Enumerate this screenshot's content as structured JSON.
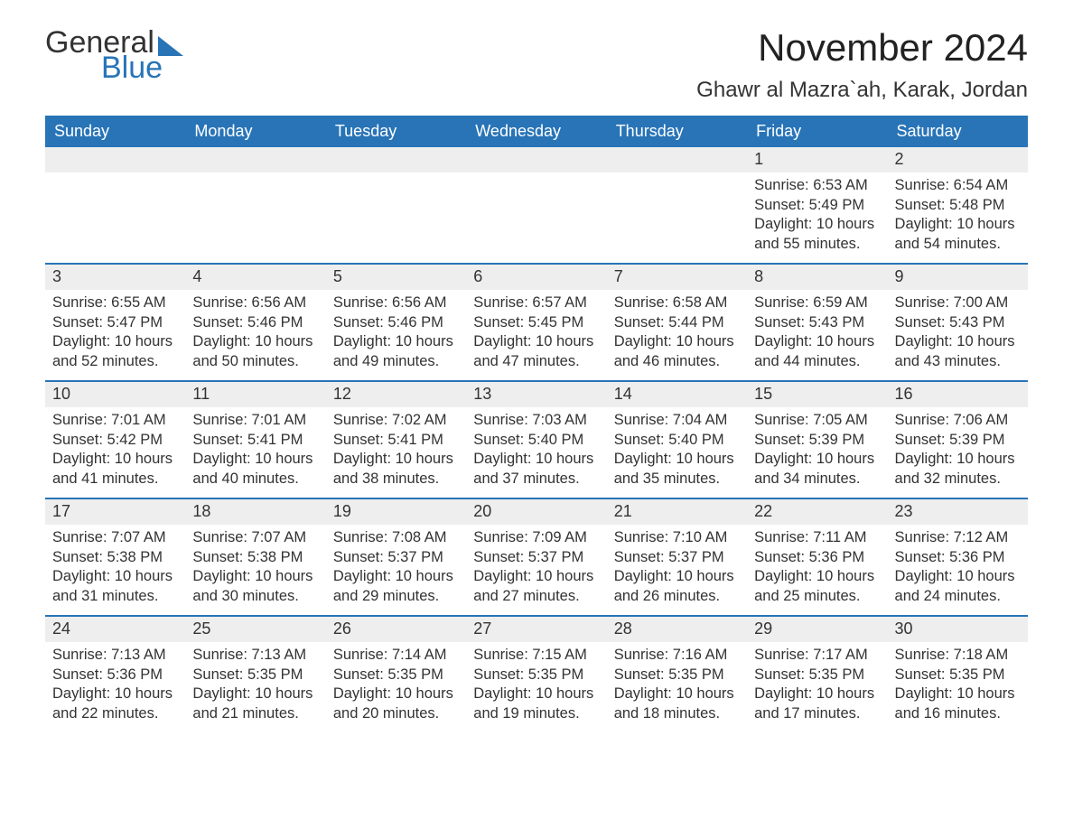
{
  "brand": {
    "word1": "General",
    "word2": "Blue"
  },
  "title": "November 2024",
  "location": "Ghawr al Mazra`ah, Karak, Jordan",
  "colors": {
    "accent": "#2874b7",
    "header_text": "#ffffff",
    "daynum_bg": "#eeeeee",
    "text": "#333333",
    "page_bg": "#ffffff"
  },
  "day_headers": [
    "Sunday",
    "Monday",
    "Tuesday",
    "Wednesday",
    "Thursday",
    "Friday",
    "Saturday"
  ],
  "weeks": [
    [
      {
        "empty": true
      },
      {
        "empty": true
      },
      {
        "empty": true
      },
      {
        "empty": true
      },
      {
        "empty": true
      },
      {
        "day": "1",
        "sunrise": "Sunrise: 6:53 AM",
        "sunset": "Sunset: 5:49 PM",
        "daylight1": "Daylight: 10 hours",
        "daylight2": "and 55 minutes."
      },
      {
        "day": "2",
        "sunrise": "Sunrise: 6:54 AM",
        "sunset": "Sunset: 5:48 PM",
        "daylight1": "Daylight: 10 hours",
        "daylight2": "and 54 minutes."
      }
    ],
    [
      {
        "day": "3",
        "sunrise": "Sunrise: 6:55 AM",
        "sunset": "Sunset: 5:47 PM",
        "daylight1": "Daylight: 10 hours",
        "daylight2": "and 52 minutes."
      },
      {
        "day": "4",
        "sunrise": "Sunrise: 6:56 AM",
        "sunset": "Sunset: 5:46 PM",
        "daylight1": "Daylight: 10 hours",
        "daylight2": "and 50 minutes."
      },
      {
        "day": "5",
        "sunrise": "Sunrise: 6:56 AM",
        "sunset": "Sunset: 5:46 PM",
        "daylight1": "Daylight: 10 hours",
        "daylight2": "and 49 minutes."
      },
      {
        "day": "6",
        "sunrise": "Sunrise: 6:57 AM",
        "sunset": "Sunset: 5:45 PM",
        "daylight1": "Daylight: 10 hours",
        "daylight2": "and 47 minutes."
      },
      {
        "day": "7",
        "sunrise": "Sunrise: 6:58 AM",
        "sunset": "Sunset: 5:44 PM",
        "daylight1": "Daylight: 10 hours",
        "daylight2": "and 46 minutes."
      },
      {
        "day": "8",
        "sunrise": "Sunrise: 6:59 AM",
        "sunset": "Sunset: 5:43 PM",
        "daylight1": "Daylight: 10 hours",
        "daylight2": "and 44 minutes."
      },
      {
        "day": "9",
        "sunrise": "Sunrise: 7:00 AM",
        "sunset": "Sunset: 5:43 PM",
        "daylight1": "Daylight: 10 hours",
        "daylight2": "and 43 minutes."
      }
    ],
    [
      {
        "day": "10",
        "sunrise": "Sunrise: 7:01 AM",
        "sunset": "Sunset: 5:42 PM",
        "daylight1": "Daylight: 10 hours",
        "daylight2": "and 41 minutes."
      },
      {
        "day": "11",
        "sunrise": "Sunrise: 7:01 AM",
        "sunset": "Sunset: 5:41 PM",
        "daylight1": "Daylight: 10 hours",
        "daylight2": "and 40 minutes."
      },
      {
        "day": "12",
        "sunrise": "Sunrise: 7:02 AM",
        "sunset": "Sunset: 5:41 PM",
        "daylight1": "Daylight: 10 hours",
        "daylight2": "and 38 minutes."
      },
      {
        "day": "13",
        "sunrise": "Sunrise: 7:03 AM",
        "sunset": "Sunset: 5:40 PM",
        "daylight1": "Daylight: 10 hours",
        "daylight2": "and 37 minutes."
      },
      {
        "day": "14",
        "sunrise": "Sunrise: 7:04 AM",
        "sunset": "Sunset: 5:40 PM",
        "daylight1": "Daylight: 10 hours",
        "daylight2": "and 35 minutes."
      },
      {
        "day": "15",
        "sunrise": "Sunrise: 7:05 AM",
        "sunset": "Sunset: 5:39 PM",
        "daylight1": "Daylight: 10 hours",
        "daylight2": "and 34 minutes."
      },
      {
        "day": "16",
        "sunrise": "Sunrise: 7:06 AM",
        "sunset": "Sunset: 5:39 PM",
        "daylight1": "Daylight: 10 hours",
        "daylight2": "and 32 minutes."
      }
    ],
    [
      {
        "day": "17",
        "sunrise": "Sunrise: 7:07 AM",
        "sunset": "Sunset: 5:38 PM",
        "daylight1": "Daylight: 10 hours",
        "daylight2": "and 31 minutes."
      },
      {
        "day": "18",
        "sunrise": "Sunrise: 7:07 AM",
        "sunset": "Sunset: 5:38 PM",
        "daylight1": "Daylight: 10 hours",
        "daylight2": "and 30 minutes."
      },
      {
        "day": "19",
        "sunrise": "Sunrise: 7:08 AM",
        "sunset": "Sunset: 5:37 PM",
        "daylight1": "Daylight: 10 hours",
        "daylight2": "and 29 minutes."
      },
      {
        "day": "20",
        "sunrise": "Sunrise: 7:09 AM",
        "sunset": "Sunset: 5:37 PM",
        "daylight1": "Daylight: 10 hours",
        "daylight2": "and 27 minutes."
      },
      {
        "day": "21",
        "sunrise": "Sunrise: 7:10 AM",
        "sunset": "Sunset: 5:37 PM",
        "daylight1": "Daylight: 10 hours",
        "daylight2": "and 26 minutes."
      },
      {
        "day": "22",
        "sunrise": "Sunrise: 7:11 AM",
        "sunset": "Sunset: 5:36 PM",
        "daylight1": "Daylight: 10 hours",
        "daylight2": "and 25 minutes."
      },
      {
        "day": "23",
        "sunrise": "Sunrise: 7:12 AM",
        "sunset": "Sunset: 5:36 PM",
        "daylight1": "Daylight: 10 hours",
        "daylight2": "and 24 minutes."
      }
    ],
    [
      {
        "day": "24",
        "sunrise": "Sunrise: 7:13 AM",
        "sunset": "Sunset: 5:36 PM",
        "daylight1": "Daylight: 10 hours",
        "daylight2": "and 22 minutes."
      },
      {
        "day": "25",
        "sunrise": "Sunrise: 7:13 AM",
        "sunset": "Sunset: 5:35 PM",
        "daylight1": "Daylight: 10 hours",
        "daylight2": "and 21 minutes."
      },
      {
        "day": "26",
        "sunrise": "Sunrise: 7:14 AM",
        "sunset": "Sunset: 5:35 PM",
        "daylight1": "Daylight: 10 hours",
        "daylight2": "and 20 minutes."
      },
      {
        "day": "27",
        "sunrise": "Sunrise: 7:15 AM",
        "sunset": "Sunset: 5:35 PM",
        "daylight1": "Daylight: 10 hours",
        "daylight2": "and 19 minutes."
      },
      {
        "day": "28",
        "sunrise": "Sunrise: 7:16 AM",
        "sunset": "Sunset: 5:35 PM",
        "daylight1": "Daylight: 10 hours",
        "daylight2": "and 18 minutes."
      },
      {
        "day": "29",
        "sunrise": "Sunrise: 7:17 AM",
        "sunset": "Sunset: 5:35 PM",
        "daylight1": "Daylight: 10 hours",
        "daylight2": "and 17 minutes."
      },
      {
        "day": "30",
        "sunrise": "Sunrise: 7:18 AM",
        "sunset": "Sunset: 5:35 PM",
        "daylight1": "Daylight: 10 hours",
        "daylight2": "and 16 minutes."
      }
    ]
  ]
}
